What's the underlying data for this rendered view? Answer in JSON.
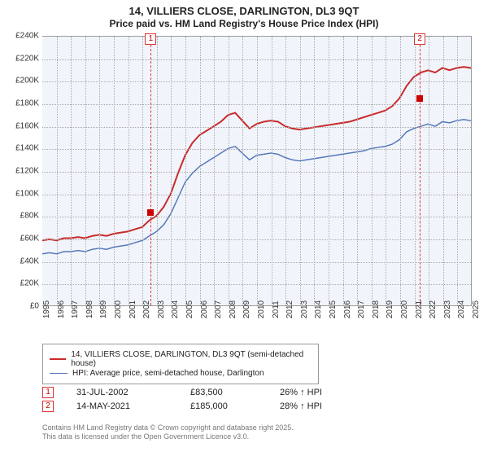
{
  "title": "14, VILLIERS CLOSE, DARLINGTON, DL3 9QT",
  "subtitle": "Price paid vs. HM Land Registry's House Price Index (HPI)",
  "chart": {
    "background_color": "#f1f5fb",
    "grid_color": "#aaaaaa",
    "y": {
      "min": 0,
      "max": 240,
      "step": 20,
      "prefix": "£",
      "suffix": "K",
      "fontsize": 10
    },
    "x": {
      "years": [
        1995,
        1996,
        1997,
        1998,
        1999,
        2000,
        2001,
        2002,
        2003,
        2004,
        2005,
        2006,
        2007,
        2008,
        2009,
        2010,
        2011,
        2012,
        2013,
        2014,
        2015,
        2016,
        2017,
        2018,
        2019,
        2020,
        2021,
        2022,
        2023,
        2024,
        2025
      ],
      "fontsize": 10
    },
    "series": [
      {
        "name": "14, VILLIERS CLOSE, DARLINGTON, DL3 9QT (semi-detached house)",
        "color": "#c92a2a",
        "width": 2,
        "y_values_k": [
          58,
          59,
          58,
          60,
          60,
          61,
          60,
          62,
          63,
          62,
          64,
          65,
          66,
          68,
          70,
          76,
          80,
          88,
          100,
          118,
          134,
          145,
          152,
          156,
          160,
          164,
          170,
          172,
          165,
          158,
          162,
          164,
          165,
          164,
          160,
          158,
          157,
          158,
          159,
          160,
          161,
          162,
          163,
          164,
          166,
          168,
          170,
          172,
          174,
          178,
          185,
          196,
          204,
          208,
          210,
          208,
          212,
          210,
          212,
          213,
          212
        ]
      },
      {
        "name": "HPI: Average price, semi-detached house, Darlington",
        "color": "#5577bb",
        "width": 1.5,
        "y_values_k": [
          46,
          47,
          46,
          48,
          48,
          49,
          48,
          50,
          51,
          50,
          52,
          53,
          54,
          56,
          58,
          62,
          66,
          72,
          82,
          96,
          110,
          118,
          124,
          128,
          132,
          136,
          140,
          142,
          136,
          130,
          134,
          135,
          136,
          135,
          132,
          130,
          129,
          130,
          131,
          132,
          133,
          134,
          135,
          136,
          137,
          138,
          140,
          141,
          142,
          144,
          148,
          155,
          158,
          160,
          162,
          160,
          164,
          163,
          165,
          166,
          165
        ]
      }
    ],
    "markers": [
      {
        "label": "1",
        "year_frac": 2002.58,
        "y_k": 83.5,
        "box_pos": "top"
      },
      {
        "label": "2",
        "year_frac": 2021.37,
        "y_k": 185.0,
        "box_pos": "top"
      }
    ]
  },
  "legend": {
    "fontsize": 10
  },
  "transactions": [
    {
      "label": "1",
      "date": "31-JUL-2002",
      "price": "£83,500",
      "hpi": "26% ↑ HPI"
    },
    {
      "label": "2",
      "date": "14-MAY-2021",
      "price": "£185,000",
      "hpi": "28% ↑ HPI"
    }
  ],
  "copyright": {
    "line1": "Contains HM Land Registry data © Crown copyright and database right 2025.",
    "line2": "This data is licensed under the Open Government Licence v3.0.",
    "color": "#777777",
    "fontsize": 9
  }
}
